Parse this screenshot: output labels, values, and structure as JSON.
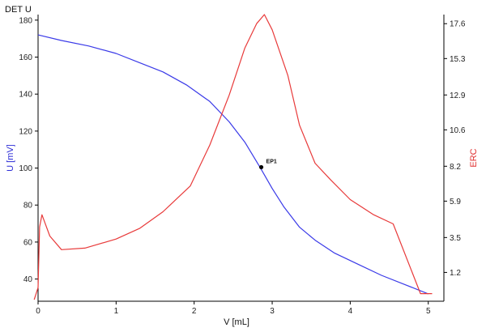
{
  "chart_data": {
    "type": "line",
    "title": "DET U",
    "xlabel": "V [mL]",
    "ylabel_left": "U [mV]",
    "ylabel_right": "ERC",
    "xlim": [
      0,
      5.2
    ],
    "x_ticks": [
      0,
      1,
      2,
      3,
      4,
      5
    ],
    "ylim_left": [
      28,
      183
    ],
    "y_ticks_left": [
      40,
      60,
      80,
      100,
      120,
      140,
      160,
      180
    ],
    "ylim_right": [
      -0.7,
      18.2
    ],
    "y_ticks_right": [
      1.2,
      3.5,
      5.9,
      8.2,
      10.6,
      12.9,
      15.3,
      17.6
    ],
    "grid": false,
    "colors": {
      "left_axis": "#2b2bd6",
      "right_axis": "#e03030",
      "axis": "#000000"
    },
    "series": [
      {
        "axis": "left",
        "color": "#3a3ae8",
        "x": [
          0,
          0.3,
          0.65,
          1.0,
          1.3,
          1.6,
          1.9,
          2.2,
          2.45,
          2.65,
          2.85,
          3.0,
          3.15,
          3.35,
          3.55,
          3.8,
          4.1,
          4.4,
          4.7,
          5.0
        ],
        "y": [
          172,
          169,
          166,
          162,
          157,
          152,
          145,
          136,
          125,
          114,
          100,
          89,
          79,
          68,
          61,
          54,
          48,
          42,
          37,
          32
        ]
      },
      {
        "axis": "right",
        "color": "#e83a3a",
        "x": [
          -0.05,
          0,
          0.02,
          0.05,
          0.15,
          0.3,
          0.6,
          1.0,
          1.3,
          1.6,
          1.95,
          2.2,
          2.45,
          2.65,
          2.8,
          2.9,
          3.0,
          3.2,
          3.35,
          3.55,
          3.75,
          4.0,
          4.3,
          4.55,
          4.87,
          4.9,
          5.05
        ],
        "y": [
          -0.6,
          0.2,
          4.2,
          5.0,
          3.6,
          2.7,
          2.8,
          3.4,
          4.1,
          5.2,
          6.9,
          9.6,
          12.9,
          16.0,
          17.6,
          18.2,
          17.2,
          14.2,
          10.9,
          8.4,
          7.3,
          6.0,
          5.0,
          4.4,
          0.2,
          -0.2,
          -0.2
        ]
      }
    ],
    "annotations": [
      {
        "label": "EP1",
        "x": 2.86,
        "y": 100.5,
        "axis": "left"
      }
    ]
  }
}
